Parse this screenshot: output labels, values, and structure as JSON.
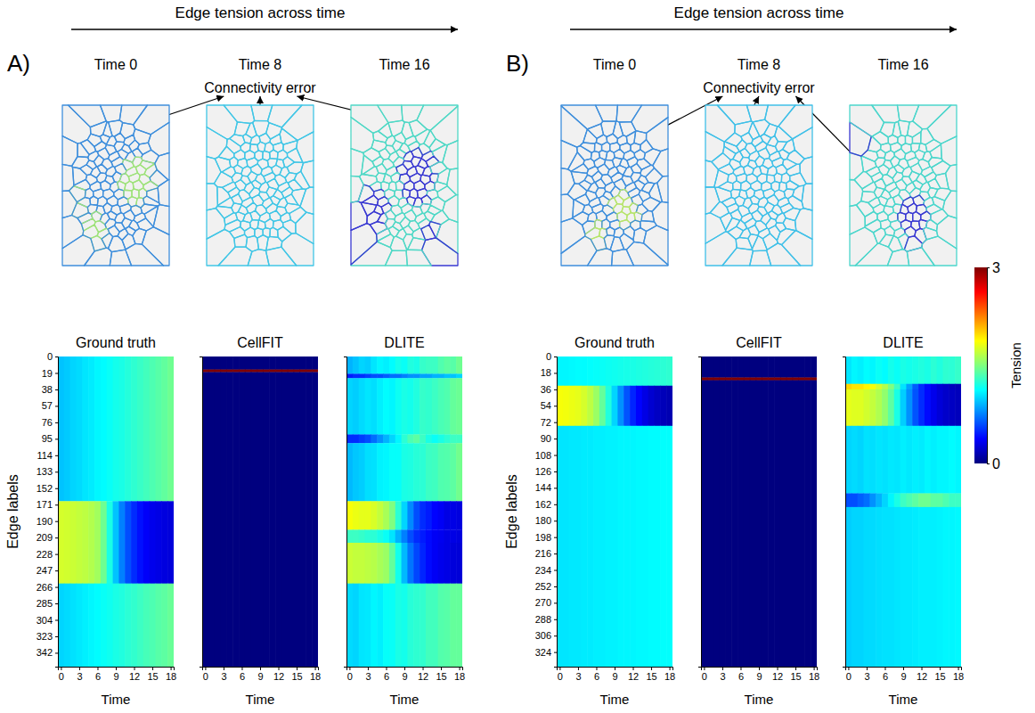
{
  "chart_data": [
    {
      "type": "heatmap",
      "title": "Ground truth",
      "xlabel": "Time",
      "ylabel": "Edge labels",
      "x": [
        0,
        1,
        2,
        3,
        4,
        5,
        6,
        7,
        8,
        9,
        10,
        11,
        12,
        13,
        14,
        15,
        16,
        17,
        18
      ],
      "xlim": [
        -0.5,
        18.5
      ],
      "xticks": [
        0,
        3,
        6,
        9,
        12,
        15,
        18
      ],
      "ylim": [
        0,
        358
      ],
      "yticks": [
        0,
        19,
        38,
        57,
        76,
        95,
        114,
        133,
        152,
        171,
        190,
        209,
        228,
        247,
        266,
        285,
        304,
        323,
        342
      ],
      "y_bins": [
        0,
        167,
        262,
        358
      ],
      "cells": [
        [
          0.95,
          0.97,
          1.0,
          1.02,
          1.05,
          1.07,
          1.1,
          1.12,
          1.15,
          1.18,
          1.2,
          1.23,
          1.26,
          1.29,
          1.32,
          1.35,
          1.38,
          1.41,
          1.45
        ],
        [
          1.75,
          1.74,
          1.72,
          1.7,
          1.68,
          1.65,
          1.6,
          1.45,
          1.2,
          0.95,
          0.75,
          0.6,
          0.5,
          0.42,
          0.36,
          0.32,
          0.3,
          0.28,
          0.27
        ],
        [
          1.0,
          1.02,
          1.04,
          1.06,
          1.08,
          1.1,
          1.12,
          1.15,
          1.17,
          1.2,
          1.22,
          1.25,
          1.27,
          1.3,
          1.33,
          1.35,
          1.38,
          1.4,
          1.43
        ]
      ]
    },
    {
      "type": "heatmap",
      "title": "CellFIT",
      "xlabel": "Time",
      "tick_labels": "x",
      "x": [
        0,
        1,
        2,
        3,
        4,
        5,
        6,
        7,
        8,
        9,
        10,
        11,
        12,
        13,
        14,
        15,
        16,
        17,
        18
      ],
      "xlim": [
        -0.5,
        18.5
      ],
      "xticks": [
        0,
        3,
        6,
        9,
        12,
        15,
        18
      ],
      "ylim": [
        0,
        358
      ],
      "y_bins": [
        0,
        15,
        18,
        358
      ],
      "cells": [
        [
          0,
          0,
          0,
          0,
          0,
          0,
          0,
          0,
          0,
          0,
          0,
          0,
          0,
          0,
          0,
          0,
          0,
          0,
          0
        ],
        [
          3,
          3,
          3,
          3,
          3,
          3,
          3,
          3,
          3,
          3,
          3,
          3,
          3,
          3,
          3,
          3,
          3,
          3,
          3
        ],
        [
          0,
          0,
          0,
          0,
          0,
          0,
          0,
          0,
          0,
          0,
          0,
          0,
          0,
          0,
          0,
          0,
          0,
          0,
          0
        ]
      ]
    },
    {
      "type": "heatmap",
      "title": "DLITE",
      "xlabel": "Time",
      "tick_labels": "x",
      "x": [
        0,
        1,
        2,
        3,
        4,
        5,
        6,
        7,
        8,
        9,
        10,
        11,
        12,
        13,
        14,
        15,
        16,
        17,
        18
      ],
      "xlim": [
        -0.5,
        18.5
      ],
      "xticks": [
        0,
        3,
        6,
        9,
        12,
        15,
        18
      ],
      "ylim": [
        0,
        358
      ],
      "y_bins": [
        0,
        20,
        25,
        90,
        100,
        167,
        200,
        215,
        262,
        358
      ],
      "cells": [
        [
          0.9,
          0.95,
          1.0,
          0.98,
          1.05,
          1.1,
          1.08,
          1.12,
          1.18,
          1.15,
          1.22,
          1.2,
          1.28,
          1.3,
          1.3,
          1.36,
          1.4,
          1.38,
          1.45
        ],
        [
          0.45,
          0.5,
          0.5,
          0.55,
          0.6,
          0.6,
          0.65,
          0.7,
          0.7,
          0.75,
          0.8,
          0.8,
          0.85,
          0.85,
          0.9,
          0.9,
          0.95,
          0.95,
          1.0
        ],
        [
          1.0,
          0.98,
          1.02,
          1.05,
          1.03,
          1.08,
          1.12,
          1.1,
          1.16,
          1.2,
          1.18,
          1.22,
          1.28,
          1.27,
          1.3,
          1.34,
          1.36,
          1.42,
          1.44
        ],
        [
          0.5,
          0.5,
          0.55,
          0.6,
          0.7,
          0.8,
          0.9,
          1.0,
          1.1,
          1.25,
          1.35,
          1.4,
          1.3,
          1.2,
          1.15,
          1.2,
          1.25,
          1.3,
          1.3
        ],
        [
          0.92,
          0.96,
          0.98,
          1.03,
          1.04,
          1.09,
          1.1,
          1.14,
          1.14,
          1.2,
          1.21,
          1.24,
          1.25,
          1.3,
          1.31,
          1.36,
          1.37,
          1.4,
          1.46
        ],
        [
          1.85,
          1.82,
          1.8,
          1.8,
          1.76,
          1.7,
          1.62,
          1.5,
          1.25,
          1.0,
          0.78,
          0.6,
          0.5,
          0.45,
          0.38,
          0.35,
          0.3,
          0.3,
          0.28
        ],
        [
          1.3,
          1.3,
          1.28,
          1.25,
          1.25,
          1.2,
          1.15,
          1.05,
          0.9,
          0.75,
          0.6,
          0.5,
          0.45,
          0.4,
          0.35,
          0.33,
          0.3,
          0.3,
          0.28
        ],
        [
          1.72,
          1.7,
          1.7,
          1.68,
          1.66,
          1.62,
          1.58,
          1.42,
          1.18,
          0.92,
          0.72,
          0.58,
          0.48,
          0.4,
          0.35,
          0.32,
          0.3,
          0.27,
          0.26
        ],
        [
          1.02,
          1.0,
          1.05,
          1.06,
          1.1,
          1.08,
          1.14,
          1.15,
          1.2,
          1.18,
          1.24,
          1.26,
          1.27,
          1.32,
          1.32,
          1.37,
          1.38,
          1.42,
          1.42
        ]
      ]
    },
    {
      "type": "heatmap",
      "title": "Ground truth",
      "xlabel": "Time",
      "ylabel": "Edge labels",
      "x": [
        0,
        1,
        2,
        3,
        4,
        5,
        6,
        7,
        8,
        9,
        10,
        11,
        12,
        13,
        14,
        15,
        16,
        17,
        18
      ],
      "xlim": [
        -0.5,
        18.5
      ],
      "xticks": [
        0,
        3,
        6,
        9,
        12,
        15,
        18
      ],
      "ylim": [
        0,
        340
      ],
      "yticks": [
        0,
        18,
        36,
        54,
        72,
        90,
        108,
        126,
        144,
        162,
        180,
        198,
        216,
        234,
        252,
        270,
        288,
        306,
        324
      ],
      "y_bins": [
        0,
        32,
        76,
        340
      ],
      "cells": [
        [
          1.1,
          1.1,
          1.11,
          1.12,
          1.12,
          1.13,
          1.14,
          1.15,
          1.16,
          1.17,
          1.18,
          1.19,
          1.2,
          1.21,
          1.22,
          1.23,
          1.24,
          1.25,
          1.26
        ],
        [
          1.85,
          1.84,
          1.82,
          1.8,
          1.75,
          1.68,
          1.58,
          1.42,
          1.22,
          1.0,
          0.8,
          0.62,
          0.48,
          0.38,
          0.3,
          0.24,
          0.2,
          0.17,
          0.15
        ],
        [
          1.05,
          1.05,
          1.06,
          1.06,
          1.07,
          1.07,
          1.08,
          1.08,
          1.09,
          1.09,
          1.1,
          1.1,
          1.1,
          1.11,
          1.11,
          1.12,
          1.12,
          1.13,
          1.13
        ]
      ]
    },
    {
      "type": "heatmap",
      "title": "CellFIT",
      "xlabel": "Time",
      "tick_labels": "x",
      "x": [
        0,
        1,
        2,
        3,
        4,
        5,
        6,
        7,
        8,
        9,
        10,
        11,
        12,
        13,
        14,
        15,
        16,
        17,
        18
      ],
      "xlim": [
        -0.5,
        18.5
      ],
      "xticks": [
        0,
        3,
        6,
        9,
        12,
        15,
        18
      ],
      "ylim": [
        0,
        340
      ],
      "y_bins": [
        0,
        23,
        26,
        340
      ],
      "cells": [
        [
          0,
          0,
          0,
          0,
          0,
          0,
          0,
          0,
          0,
          0,
          0,
          0,
          0,
          0,
          0,
          0,
          0,
          0,
          0
        ],
        [
          3,
          3,
          3,
          3,
          3,
          3,
          3,
          3,
          3,
          3,
          3,
          3,
          3,
          3,
          3,
          3,
          3,
          3,
          3
        ],
        [
          0,
          0,
          0,
          0,
          0,
          0,
          0,
          0,
          0,
          0,
          0,
          0,
          0,
          0,
          0,
          0,
          0,
          0,
          0
        ]
      ]
    },
    {
      "type": "heatmap",
      "title": "DLITE",
      "xlabel": "Time",
      "tick_labels": "x",
      "x": [
        0,
        1,
        2,
        3,
        4,
        5,
        6,
        7,
        8,
        9,
        10,
        11,
        12,
        13,
        14,
        15,
        16,
        17,
        18
      ],
      "xlim": [
        -0.5,
        18.5
      ],
      "xticks": [
        0,
        3,
        6,
        9,
        12,
        15,
        18
      ],
      "ylim": [
        0,
        340
      ],
      "y_bins": [
        0,
        30,
        36,
        76,
        150,
        165,
        340
      ],
      "cells": [
        [
          1.05,
          1.1,
          1.08,
          1.12,
          1.1,
          1.15,
          1.12,
          1.18,
          1.15,
          1.2,
          1.18,
          1.2,
          1.22,
          1.2,
          1.25,
          1.22,
          1.26,
          1.25,
          1.28
        ],
        [
          2.0,
          1.95,
          1.95,
          1.9,
          1.85,
          1.75,
          1.65,
          1.5,
          1.3,
          1.05,
          0.85,
          0.65,
          0.5,
          0.4,
          0.32,
          0.25,
          0.22,
          0.18,
          0.16
        ],
        [
          1.8,
          1.78,
          1.78,
          1.74,
          1.7,
          1.64,
          1.55,
          1.4,
          1.2,
          0.98,
          0.8,
          0.62,
          0.5,
          0.4,
          0.32,
          0.26,
          0.22,
          0.2,
          0.18
        ],
        [
          1.0,
          1.02,
          1.0,
          1.04,
          1.03,
          1.05,
          1.04,
          1.06,
          1.05,
          1.08,
          1.06,
          1.08,
          1.07,
          1.1,
          1.08,
          1.1,
          1.1,
          1.12,
          1.1
        ],
        [
          0.6,
          0.6,
          0.65,
          0.7,
          0.8,
          0.9,
          1.0,
          1.1,
          1.2,
          1.3,
          1.35,
          1.4,
          1.45,
          1.45,
          1.4,
          1.4,
          1.35,
          1.3,
          1.3
        ],
        [
          0.98,
          1.0,
          1.0,
          1.02,
          1.02,
          1.03,
          1.04,
          1.04,
          1.05,
          1.06,
          1.06,
          1.07,
          1.08,
          1.08,
          1.08,
          1.09,
          1.1,
          1.1,
          1.11
        ]
      ]
    }
  ],
  "panels": [
    {
      "letter": "A)",
      "header": "Edge tension across time",
      "image_labels": [
        "Time 0",
        "Time 8",
        "Time 16"
      ],
      "annotation": "Connectivity error"
    },
    {
      "letter": "B)",
      "header": "Edge tension across time",
      "image_labels": [
        "Time 0",
        "Time 8",
        "Time 16"
      ],
      "annotation": "Connectivity error"
    }
  ],
  "colorbar": {
    "label": "Tension",
    "range": [
      0,
      3
    ],
    "ticks": [
      0,
      3
    ]
  }
}
